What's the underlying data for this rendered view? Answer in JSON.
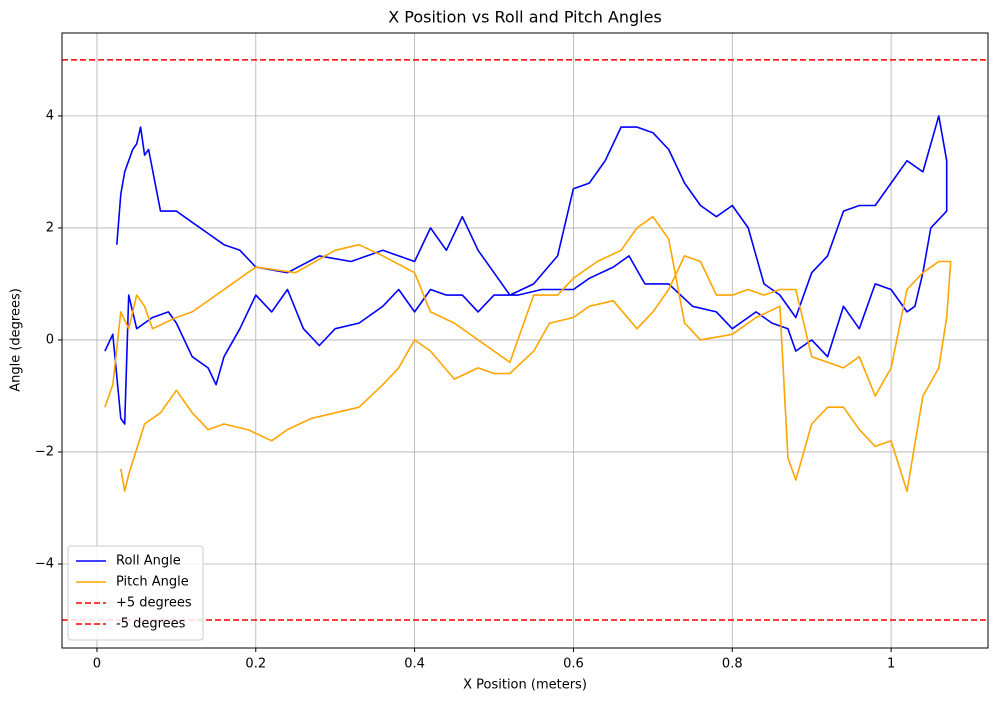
{
  "chart_data": {
    "type": "line",
    "title": "X Position vs Roll and Pitch Angles",
    "x_label": "X Position (meters)",
    "y_label": "Angle (degrees)",
    "xlim": [
      -0.044,
      1.122
    ],
    "ylim": [
      -5.5,
      5.48
    ],
    "xticks": [
      0.0,
      0.2,
      0.4,
      0.6,
      0.8,
      1.0
    ],
    "yticks": [
      {
        "value": -4,
        "label": "−4"
      },
      {
        "value": -2,
        "label": "−2"
      },
      0,
      2,
      4
    ],
    "grid": true,
    "legend": "lower left",
    "series": [
      {
        "name": "Roll Angle",
        "color": "#0000ff",
        "x": [
          0.025,
          0.03,
          0.035,
          0.04,
          0.045,
          0.05,
          0.055,
          0.06,
          0.065,
          0.08,
          0.1,
          0.12,
          0.14,
          0.16,
          0.18,
          0.2,
          0.24,
          0.28,
          0.32,
          0.36,
          0.38,
          0.4,
          0.42,
          0.44,
          0.46,
          0.48,
          0.5,
          0.52,
          0.55,
          0.58,
          0.6,
          0.62,
          0.64,
          0.66,
          0.68,
          0.7,
          0.72,
          0.74,
          0.76,
          0.78,
          0.8,
          0.82,
          0.84,
          0.86,
          0.88,
          0.9,
          0.92,
          0.94,
          0.96,
          0.98,
          1.0,
          1.02,
          1.04,
          1.06,
          1.07,
          1.07,
          1.05,
          1.04,
          1.03,
          1.02,
          1.0,
          0.98,
          0.96,
          0.94,
          0.92,
          0.9,
          0.88,
          0.87,
          0.85,
          0.83,
          0.8,
          0.78,
          0.75,
          0.72,
          0.69,
          0.67,
          0.65,
          0.62,
          0.6,
          0.56,
          0.53,
          0.5,
          0.48,
          0.46,
          0.44,
          0.42,
          0.4,
          0.38,
          0.36,
          0.33,
          0.3,
          0.28,
          0.26,
          0.24,
          0.22,
          0.2,
          0.18,
          0.16,
          0.15,
          0.14,
          0.12,
          0.1,
          0.09,
          0.07,
          0.05,
          0.045,
          0.04,
          0.035,
          0.03,
          0.02,
          0.01
        ],
        "values": [
          1.7,
          2.6,
          3.0,
          3.2,
          3.4,
          3.5,
          3.8,
          3.3,
          3.4,
          2.3,
          2.3,
          2.1,
          1.9,
          1.7,
          1.6,
          1.3,
          1.2,
          1.5,
          1.4,
          1.6,
          1.5,
          1.4,
          2.0,
          1.6,
          2.2,
          1.6,
          1.2,
          0.8,
          1.0,
          1.5,
          2.7,
          2.8,
          3.2,
          3.8,
          3.8,
          3.7,
          3.4,
          2.8,
          2.4,
          2.2,
          2.4,
          2.0,
          1.0,
          0.8,
          0.4,
          1.2,
          1.5,
          2.3,
          2.4,
          2.4,
          2.8,
          3.2,
          3.0,
          4.0,
          3.2,
          2.3,
          2.0,
          1.2,
          0.6,
          0.5,
          0.9,
          1.0,
          0.2,
          0.6,
          -0.3,
          0.0,
          -0.2,
          0.2,
          0.3,
          0.5,
          0.2,
          0.5,
          0.6,
          1.0,
          1.0,
          1.5,
          1.3,
          1.1,
          0.9,
          0.9,
          0.8,
          0.8,
          0.5,
          0.8,
          0.8,
          0.9,
          0.5,
          0.9,
          0.6,
          0.3,
          0.2,
          -0.1,
          0.2,
          0.9,
          0.5,
          0.8,
          0.2,
          -0.3,
          -0.8,
          -0.5,
          -0.3,
          0.3,
          0.5,
          0.4,
          0.2,
          0.5,
          0.8,
          -1.5,
          -1.4,
          0.1,
          -0.2
        ]
      },
      {
        "name": "Pitch Angle",
        "color": "#ffa500",
        "x": [
          0.01,
          0.02,
          0.03,
          0.04,
          0.05,
          0.06,
          0.07,
          0.1,
          0.12,
          0.15,
          0.18,
          0.2,
          0.25,
          0.3,
          0.33,
          0.36,
          0.4,
          0.42,
          0.45,
          0.48,
          0.5,
          0.52,
          0.55,
          0.58,
          0.6,
          0.63,
          0.66,
          0.68,
          0.7,
          0.72,
          0.74,
          0.76,
          0.8,
          0.83,
          0.86,
          0.87,
          0.88,
          0.9,
          0.92,
          0.94,
          0.96,
          0.98,
          1.0,
          1.02,
          1.04,
          1.06,
          1.07,
          1.075,
          1.06,
          1.04,
          1.02,
          1.0,
          0.98,
          0.96,
          0.94,
          0.92,
          0.9,
          0.88,
          0.86,
          0.84,
          0.82,
          0.8,
          0.78,
          0.76,
          0.74,
          0.72,
          0.7,
          0.68,
          0.65,
          0.62,
          0.6,
          0.57,
          0.55,
          0.52,
          0.5,
          0.48,
          0.45,
          0.42,
          0.4,
          0.38,
          0.36,
          0.33,
          0.3,
          0.27,
          0.24,
          0.22,
          0.19,
          0.16,
          0.14,
          0.12,
          0.1,
          0.08,
          0.06,
          0.04,
          0.035,
          0.03
        ],
        "values": [
          -1.2,
          -0.8,
          0.5,
          0.2,
          0.8,
          0.6,
          0.2,
          0.4,
          0.5,
          0.8,
          1.1,
          1.3,
          1.2,
          1.6,
          1.7,
          1.5,
          1.2,
          0.5,
          0.3,
          0.0,
          -0.2,
          -0.4,
          0.8,
          0.8,
          1.1,
          1.4,
          1.6,
          2.0,
          2.2,
          1.8,
          0.3,
          0.0,
          0.1,
          0.4,
          0.6,
          -2.1,
          -2.5,
          -1.5,
          -1.2,
          -1.2,
          -1.6,
          -1.9,
          -1.8,
          -2.7,
          -1.0,
          -0.5,
          0.4,
          1.4,
          1.4,
          1.2,
          0.9,
          -0.5,
          -1.0,
          -0.3,
          -0.5,
          -0.4,
          -0.3,
          0.9,
          0.9,
          0.8,
          0.9,
          0.8,
          0.8,
          1.4,
          1.5,
          0.9,
          0.5,
          0.2,
          0.7,
          0.6,
          0.4,
          0.3,
          -0.2,
          -0.6,
          -0.6,
          -0.5,
          -0.7,
          -0.2,
          0.0,
          -0.5,
          -0.8,
          -1.2,
          -1.3,
          -1.4,
          -1.6,
          -1.8,
          -1.6,
          -1.5,
          -1.6,
          -1.3,
          -0.9,
          -1.3,
          -1.5,
          -2.4,
          -2.7,
          -2.3
        ]
      }
    ],
    "hlines": [
      {
        "name": "+5 degrees",
        "color": "#ff0000",
        "value": 5
      },
      {
        "name": "-5 degrees",
        "color": "#ff0000",
        "value": -5
      }
    ]
  }
}
